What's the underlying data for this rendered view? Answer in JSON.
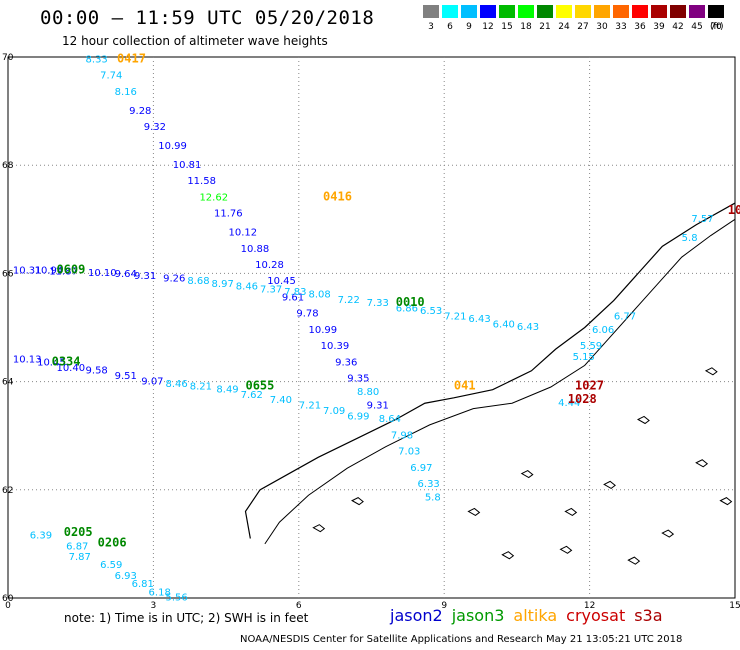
{
  "header": {
    "title": "00:00 – 11:59 UTC 05/20/2018",
    "subtitle": "12 hour collection of altimeter wave heights"
  },
  "scale": {
    "unit": "(ft)",
    "colors": [
      "#808080",
      "#00ffff",
      "#00bfff",
      "#0000ff",
      "#00bb00",
      "#00ff00",
      "#008800",
      "#ffff00",
      "#ffd700",
      "#ffa500",
      "#ff6600",
      "#ff0000",
      "#aa0000",
      "#800000",
      "#800080",
      "#000000"
    ],
    "ticks": [
      "3",
      "6",
      "9",
      "12",
      "15",
      "18",
      "21",
      "24",
      "27",
      "30",
      "33",
      "36",
      "39",
      "42",
      "45",
      "70"
    ]
  },
  "axes": {
    "x_ticks": [
      "0",
      "3",
      "6",
      "9",
      "12",
      "15"
    ],
    "y_ticks": [
      "70",
      "68",
      "66",
      "64",
      "62",
      "60"
    ],
    "xlim": [
      0,
      15
    ],
    "ylim": [
      60,
      70
    ]
  },
  "passes": [
    {
      "label": "0417",
      "color": "#ffa500",
      "x": 2.25,
      "y": 69.9
    },
    {
      "label": "0416",
      "color": "#ffa500",
      "x": 6.5,
      "y": 67.35
    },
    {
      "label": "0609",
      "color": "#008800",
      "x": 1.0,
      "y": 66.0
    },
    {
      "label": "0010",
      "color": "#008800",
      "x": 8.0,
      "y": 65.4
    },
    {
      "label": "0334",
      "color": "#008800",
      "x": 0.9,
      "y": 64.3
    },
    {
      "label": "0655",
      "color": "#008800",
      "x": 4.9,
      "y": 63.85
    },
    {
      "label": "041",
      "color": "#ffa500",
      "x": 9.2,
      "y": 63.85
    },
    {
      "label": "1027",
      "color": "#aa0000",
      "x": 11.7,
      "y": 63.85
    },
    {
      "label": "1028",
      "color": "#aa0000",
      "x": 11.55,
      "y": 63.6
    },
    {
      "label": "0205",
      "color": "#008800",
      "x": 1.15,
      "y": 61.15
    },
    {
      "label": "0206",
      "color": "#008800",
      "x": 1.85,
      "y": 60.95
    },
    {
      "label": "10",
      "color": "#aa0000",
      "x": 14.85,
      "y": 67.1
    }
  ],
  "track_heights": [
    {
      "v": "8.33",
      "c": "#00bfff",
      "x": 1.6,
      "y": 69.9
    },
    {
      "v": "7.74",
      "c": "#00bfff",
      "x": 1.9,
      "y": 69.6
    },
    {
      "v": "8.16",
      "c": "#00bfff",
      "x": 2.2,
      "y": 69.3
    },
    {
      "v": "9.28",
      "c": "#0000ff",
      "x": 2.5,
      "y": 68.95
    },
    {
      "v": "9.32",
      "c": "#0000ff",
      "x": 2.8,
      "y": 68.65
    },
    {
      "v": "10.99",
      "c": "#0000ff",
      "x": 3.1,
      "y": 68.3
    },
    {
      "v": "10.81",
      "c": "#0000ff",
      "x": 3.4,
      "y": 67.95
    },
    {
      "v": "11.58",
      "c": "#0000ff",
      "x": 3.7,
      "y": 67.65
    },
    {
      "v": "12.62",
      "c": "#00ff00",
      "x": 3.95,
      "y": 67.35
    },
    {
      "v": "11.76",
      "c": "#0000ff",
      "x": 4.25,
      "y": 67.05
    },
    {
      "v": "10.12",
      "c": "#0000ff",
      "x": 4.55,
      "y": 66.7
    },
    {
      "v": "10.88",
      "c": "#0000ff",
      "x": 4.8,
      "y": 66.4
    },
    {
      "v": "10.28",
      "c": "#0000ff",
      "x": 5.1,
      "y": 66.1
    },
    {
      "v": "10.45",
      "c": "#0000ff",
      "x": 5.35,
      "y": 65.8
    },
    {
      "v": "9.61",
      "c": "#0000ff",
      "x": 5.65,
      "y": 65.5
    },
    {
      "v": "9.78",
      "c": "#0000ff",
      "x": 5.95,
      "y": 65.2
    },
    {
      "v": "10.99",
      "c": "#0000ff",
      "x": 6.2,
      "y": 64.9
    },
    {
      "v": "10.39",
      "c": "#0000ff",
      "x": 6.45,
      "y": 64.6
    },
    {
      "v": "9.36",
      "c": "#0000ff",
      "x": 6.75,
      "y": 64.3
    },
    {
      "v": "9.35",
      "c": "#0000ff",
      "x": 7.0,
      "y": 64.0
    },
    {
      "v": "8.80",
      "c": "#00bfff",
      "x": 7.2,
      "y": 63.75
    },
    {
      "v": "9.31",
      "c": "#0000ff",
      "x": 7.4,
      "y": 63.5
    },
    {
      "v": "8.64",
      "c": "#00bfff",
      "x": 7.65,
      "y": 63.25
    },
    {
      "v": "7.98",
      "c": "#00bfff",
      "x": 7.9,
      "y": 62.95
    },
    {
      "v": "7.03",
      "c": "#00bfff",
      "x": 8.05,
      "y": 62.65
    },
    {
      "v": "6.97",
      "c": "#00bfff",
      "x": 8.3,
      "y": 62.35
    },
    {
      "v": "6.33",
      "c": "#00bfff",
      "x": 8.45,
      "y": 62.05
    },
    {
      "v": "5.8",
      "c": "#00bfff",
      "x": 8.6,
      "y": 61.8
    }
  ],
  "row_heights": [
    {
      "v": "10.31",
      "c": "#0000ff",
      "x": 0.1,
      "y": 66.0
    },
    {
      "v": "10.94",
      "c": "#0000ff",
      "x": 0.55,
      "y": 66.0
    },
    {
      "v": "11.87",
      "c": "#0000ff",
      "x": 0.85,
      "y": 65.98
    },
    {
      "v": "10.10",
      "c": "#0000ff",
      "x": 1.65,
      "y": 65.95
    },
    {
      "v": "9.64",
      "c": "#0000ff",
      "x": 2.2,
      "y": 65.93
    },
    {
      "v": "9.31",
      "c": "#0000ff",
      "x": 2.6,
      "y": 65.9
    },
    {
      "v": "9.26",
      "c": "#0000ff",
      "x": 3.2,
      "y": 65.85
    },
    {
      "v": "8.68",
      "c": "#00bfff",
      "x": 3.7,
      "y": 65.8
    },
    {
      "v": "8.97",
      "c": "#00bfff",
      "x": 4.2,
      "y": 65.75
    },
    {
      "v": "8.46",
      "c": "#00bfff",
      "x": 4.7,
      "y": 65.7
    },
    {
      "v": "7.37",
      "c": "#00bfff",
      "x": 5.2,
      "y": 65.65
    },
    {
      "v": "7.83",
      "c": "#00bfff",
      "x": 5.7,
      "y": 65.6
    },
    {
      "v": "8.08",
      "c": "#00bfff",
      "x": 6.2,
      "y": 65.55
    },
    {
      "v": "7.22",
      "c": "#00bfff",
      "x": 6.8,
      "y": 65.45
    },
    {
      "v": "7.33",
      "c": "#00bfff",
      "x": 7.4,
      "y": 65.4
    },
    {
      "v": "6.86",
      "c": "#00bfff",
      "x": 8.0,
      "y": 65.3
    },
    {
      "v": "6.53",
      "c": "#00bfff",
      "x": 8.5,
      "y": 65.25
    },
    {
      "v": "7.21",
      "c": "#00bfff",
      "x": 9.0,
      "y": 65.15
    },
    {
      "v": "6.43",
      "c": "#00bfff",
      "x": 9.5,
      "y": 65.1
    },
    {
      "v": "6.40",
      "c": "#00bfff",
      "x": 10.0,
      "y": 65.0
    },
    {
      "v": "6.43",
      "c": "#00bfff",
      "x": 10.5,
      "y": 64.95
    }
  ],
  "row2_heights": [
    {
      "v": "10.13",
      "c": "#0000ff",
      "x": 0.1,
      "y": 64.35
    },
    {
      "v": "10.45",
      "c": "#0000ff",
      "x": 0.6,
      "y": 64.3
    },
    {
      "v": "10.40",
      "c": "#0000ff",
      "x": 1.0,
      "y": 64.2
    },
    {
      "v": "9.58",
      "c": "#0000ff",
      "x": 1.6,
      "y": 64.15
    },
    {
      "v": "9.51",
      "c": "#0000ff",
      "x": 2.2,
      "y": 64.05
    },
    {
      "v": "9.07",
      "c": "#0000ff",
      "x": 2.75,
      "y": 63.95
    },
    {
      "v": "8.46",
      "c": "#00bfff",
      "x": 3.25,
      "y": 63.9
    },
    {
      "v": "8.21",
      "c": "#00bfff",
      "x": 3.75,
      "y": 63.85
    },
    {
      "v": "8.49",
      "c": "#00bfff",
      "x": 4.3,
      "y": 63.8
    },
    {
      "v": "7.62",
      "c": "#00bfff",
      "x": 4.8,
      "y": 63.7
    },
    {
      "v": "7.40",
      "c": "#00bfff",
      "x": 5.4,
      "y": 63.6
    },
    {
      "v": "7.21",
      "c": "#00bfff",
      "x": 6.0,
      "y": 63.5
    },
    {
      "v": "7.09",
      "c": "#00bfff",
      "x": 6.5,
      "y": 63.4
    },
    {
      "v": "6.99",
      "c": "#00bfff",
      "x": 7.0,
      "y": 63.3
    }
  ],
  "south_heights": [
    {
      "v": "6.39",
      "c": "#00bfff",
      "x": 0.45,
      "y": 61.1
    },
    {
      "v": "6.87",
      "c": "#00bfff",
      "x": 1.2,
      "y": 60.9
    },
    {
      "v": "7.87",
      "c": "#00bfff",
      "x": 1.25,
      "y": 60.7
    },
    {
      "v": "6.59",
      "c": "#00bfff",
      "x": 1.9,
      "y": 60.55
    },
    {
      "v": "6.93",
      "c": "#00bfff",
      "x": 2.2,
      "y": 60.35
    },
    {
      "v": "6.81",
      "c": "#00bfff",
      "x": 2.55,
      "y": 60.2
    },
    {
      "v": "6.18",
      "c": "#00bfff",
      "x": 2.9,
      "y": 60.05
    },
    {
      "v": "5.56",
      "c": "#00bfff",
      "x": 3.25,
      "y": 59.95
    }
  ],
  "coast_heights": [
    {
      "v": "7.57",
      "c": "#00bfff",
      "x": 14.1,
      "y": 66.95
    },
    {
      "v": "5.8",
      "c": "#00bfff",
      "x": 13.9,
      "y": 66.6
    },
    {
      "v": "6.77",
      "c": "#00bfff",
      "x": 12.5,
      "y": 65.15
    },
    {
      "v": "6.06",
      "c": "#00bfff",
      "x": 12.05,
      "y": 64.9
    },
    {
      "v": "5.59",
      "c": "#00bfff",
      "x": 11.8,
      "y": 64.6
    },
    {
      "v": "5.15",
      "c": "#00bfff",
      "x": 11.65,
      "y": 64.4
    },
    {
      "v": "4.44",
      "c": "#00bfff",
      "x": 11.35,
      "y": 63.55
    }
  ],
  "footer": {
    "note": "note: 1) Time is in UTC; 2) SWH is in feet",
    "credit": "NOAA/NESDIS Center for Satellite Applications and Research     May 21 13:05:21 UTC 2018",
    "missions": [
      {
        "label": "jason2",
        "color": "#0000cc"
      },
      {
        "label": "jason3",
        "color": "#009900"
      },
      {
        "label": "altika",
        "color": "#ffa500"
      },
      {
        "label": "cryosat",
        "color": "#cc0000"
      },
      {
        "label": "s3a",
        "color": "#aa0000"
      }
    ]
  }
}
